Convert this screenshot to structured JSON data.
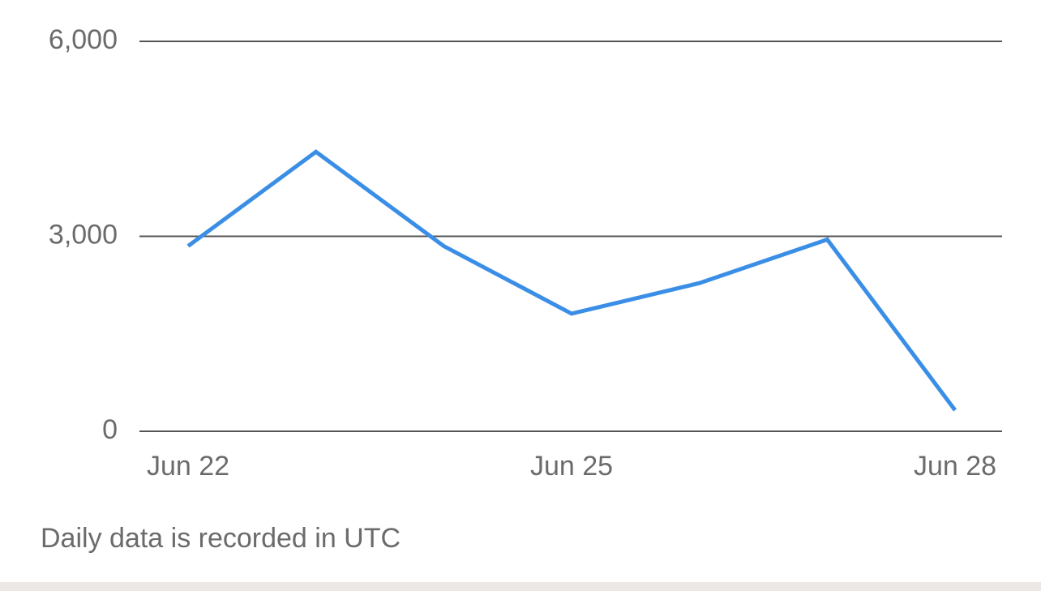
{
  "chart_data": {
    "type": "line",
    "categories": [
      "Jun 22",
      null,
      null,
      "Jun 25",
      null,
      null,
      "Jun 28"
    ],
    "series": [
      {
        "color": "#3a8ee6",
        "values": [
          2850,
          4300,
          2850,
          1810,
          2280,
          2950,
          325
        ]
      }
    ],
    "ylim": [
      0,
      6000
    ],
    "yticks": [
      0,
      {
        "value": 3000,
        "label": "3,000"
      },
      {
        "value": 6000,
        "label": "6,000"
      }
    ],
    "grid": true,
    "note": "Daily data is recorded in UTC"
  }
}
